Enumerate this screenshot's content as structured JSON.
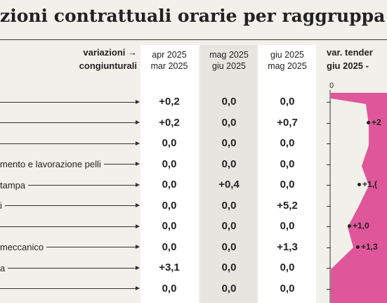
{
  "header": {
    "title": "zioni contrattuali orarie per raggruppa",
    "row_header": [
      "variazioni →",
      "congiunturali"
    ],
    "columns": [
      [
        "apr 2025",
        "mar 2025"
      ],
      [
        "mag 2025",
        "giu 2025"
      ],
      [
        "giu 2025",
        "mag 2025"
      ]
    ],
    "side_header": [
      "var. tender",
      "giu 2025 -"
    ],
    "side_axis": "0"
  },
  "table": {
    "rows": [
      {
        "label": null,
        "cells": [
          "+0,2",
          "0,0",
          "0,0"
        ],
        "side": null
      },
      {
        "label": null,
        "cells": [
          "+0,2",
          "0,0",
          "+0,7"
        ],
        "side": "+2"
      },
      {
        "label": null,
        "cells": [
          "0,0",
          "0,0",
          "0,0"
        ],
        "side": null
      },
      {
        "label": "mento e lavorazione pelli",
        "cells": [
          "0,0",
          "0,0",
          "0,0"
        ],
        "side": null
      },
      {
        "label": "tampa",
        "cells": [
          "0,0",
          "+0,4",
          "0,0"
        ],
        "side": "+1,("
      },
      {
        "label": "i",
        "cells": [
          "0,0",
          "0,0",
          "+5,2"
        ],
        "side": null
      },
      {
        "label": null,
        "cells": [
          "0,0",
          "0,0",
          "0,0"
        ],
        "side": "+1,0"
      },
      {
        "label": "meccanico",
        "cells": [
          "0,0",
          "0,0",
          "+1,3"
        ],
        "side": "+1,3"
      },
      {
        "label": "a",
        "cells": [
          "+3,1",
          "0,0",
          "0,0"
        ],
        "side": null
      },
      {
        "label": null,
        "cells": [
          "0,0",
          "0,0",
          "0,0"
        ],
        "side": null
      }
    ]
  }
}
